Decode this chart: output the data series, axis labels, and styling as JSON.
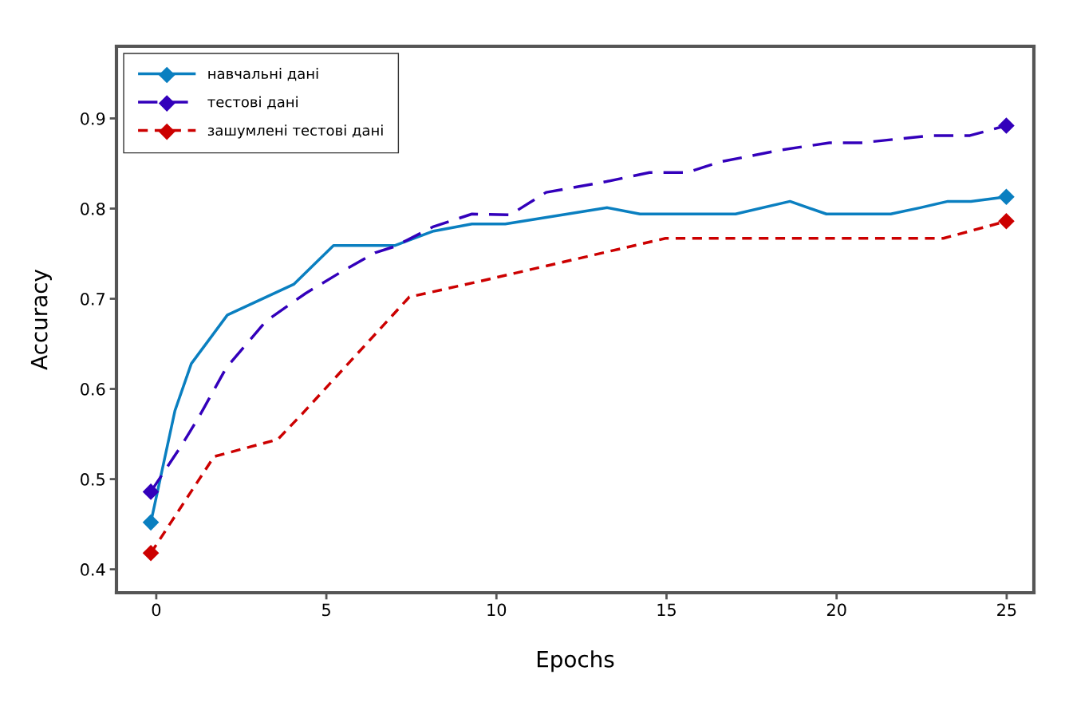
{
  "chart_data": {
    "type": "line",
    "xlabel": "Epochs",
    "ylabel": "Accuracy",
    "xlim": [
      -1.17,
      25.8
    ],
    "ylim": [
      0.374,
      0.98
    ],
    "xticks": [
      0,
      5,
      10,
      15,
      20,
      25
    ],
    "yticks": [
      0.4,
      0.5,
      0.6,
      0.7,
      0.8,
      0.9
    ],
    "grid": false,
    "legend": "top left",
    "marker": "diamond",
    "series": [
      {
        "name": "навчальні дані",
        "color": "#0a7fc0",
        "line_style": "solid",
        "marker": "none",
        "x": [
          -0.16,
          0.55,
          1.03,
          2.09,
          4.04,
          5.21,
          7.01,
          8.15,
          9.28,
          10.26,
          13.26,
          14.22,
          17.03,
          18.63,
          19.7,
          21.59,
          22.46,
          23.27,
          23.95,
          24.99
        ],
        "values": [
          0.452,
          0.576,
          0.628,
          0.682,
          0.716,
          0.759,
          0.759,
          0.775,
          0.783,
          0.783,
          0.801,
          0.794,
          0.794,
          0.808,
          0.794,
          0.794,
          0.801,
          0.808,
          0.808,
          0.813
        ]
      },
      {
        "name": "тестові дані",
        "color": "#3300bb",
        "line_style": "dashed",
        "marker": "none",
        "x": [
          -0.16,
          0.72,
          1.27,
          2.05,
          3.22,
          4.39,
          5.49,
          6.43,
          7.01,
          8.15,
          9.28,
          10.4,
          11.46,
          13.24,
          14.5,
          15.6,
          16.6,
          18.37,
          19.79,
          20.73,
          22.77,
          23.92,
          24.99
        ],
        "values": [
          0.486,
          0.536,
          0.57,
          0.623,
          0.675,
          0.706,
          0.731,
          0.751,
          0.758,
          0.78,
          0.794,
          0.793,
          0.818,
          0.83,
          0.84,
          0.84,
          0.852,
          0.865,
          0.873,
          0.873,
          0.881,
          0.881,
          0.892
        ]
      },
      {
        "name": "зашумлені тестові дані",
        "color": "#cc0000",
        "line_style": "dotted",
        "marker": "none",
        "x": [
          -0.16,
          1.7,
          3.57,
          4.28,
          7.44,
          9.47,
          14.97,
          23.14,
          24.99
        ],
        "values": [
          0.418,
          0.525,
          0.544,
          0.572,
          0.702,
          0.719,
          0.767,
          0.767,
          0.786
        ]
      },
      {
        "type": "scatter",
        "color": "#0a7fc0",
        "x": [
          -0.16,
          24.99
        ],
        "values": [
          0.452,
          0.813
        ]
      },
      {
        "type": "scatter",
        "color": "#3300bb",
        "x": [
          -0.16,
          24.99
        ],
        "values": [
          0.486,
          0.892
        ]
      },
      {
        "type": "scatter",
        "color": "#cc0000",
        "x": [
          -0.16,
          24.99
        ],
        "values": [
          0.418,
          0.786
        ]
      }
    ]
  }
}
